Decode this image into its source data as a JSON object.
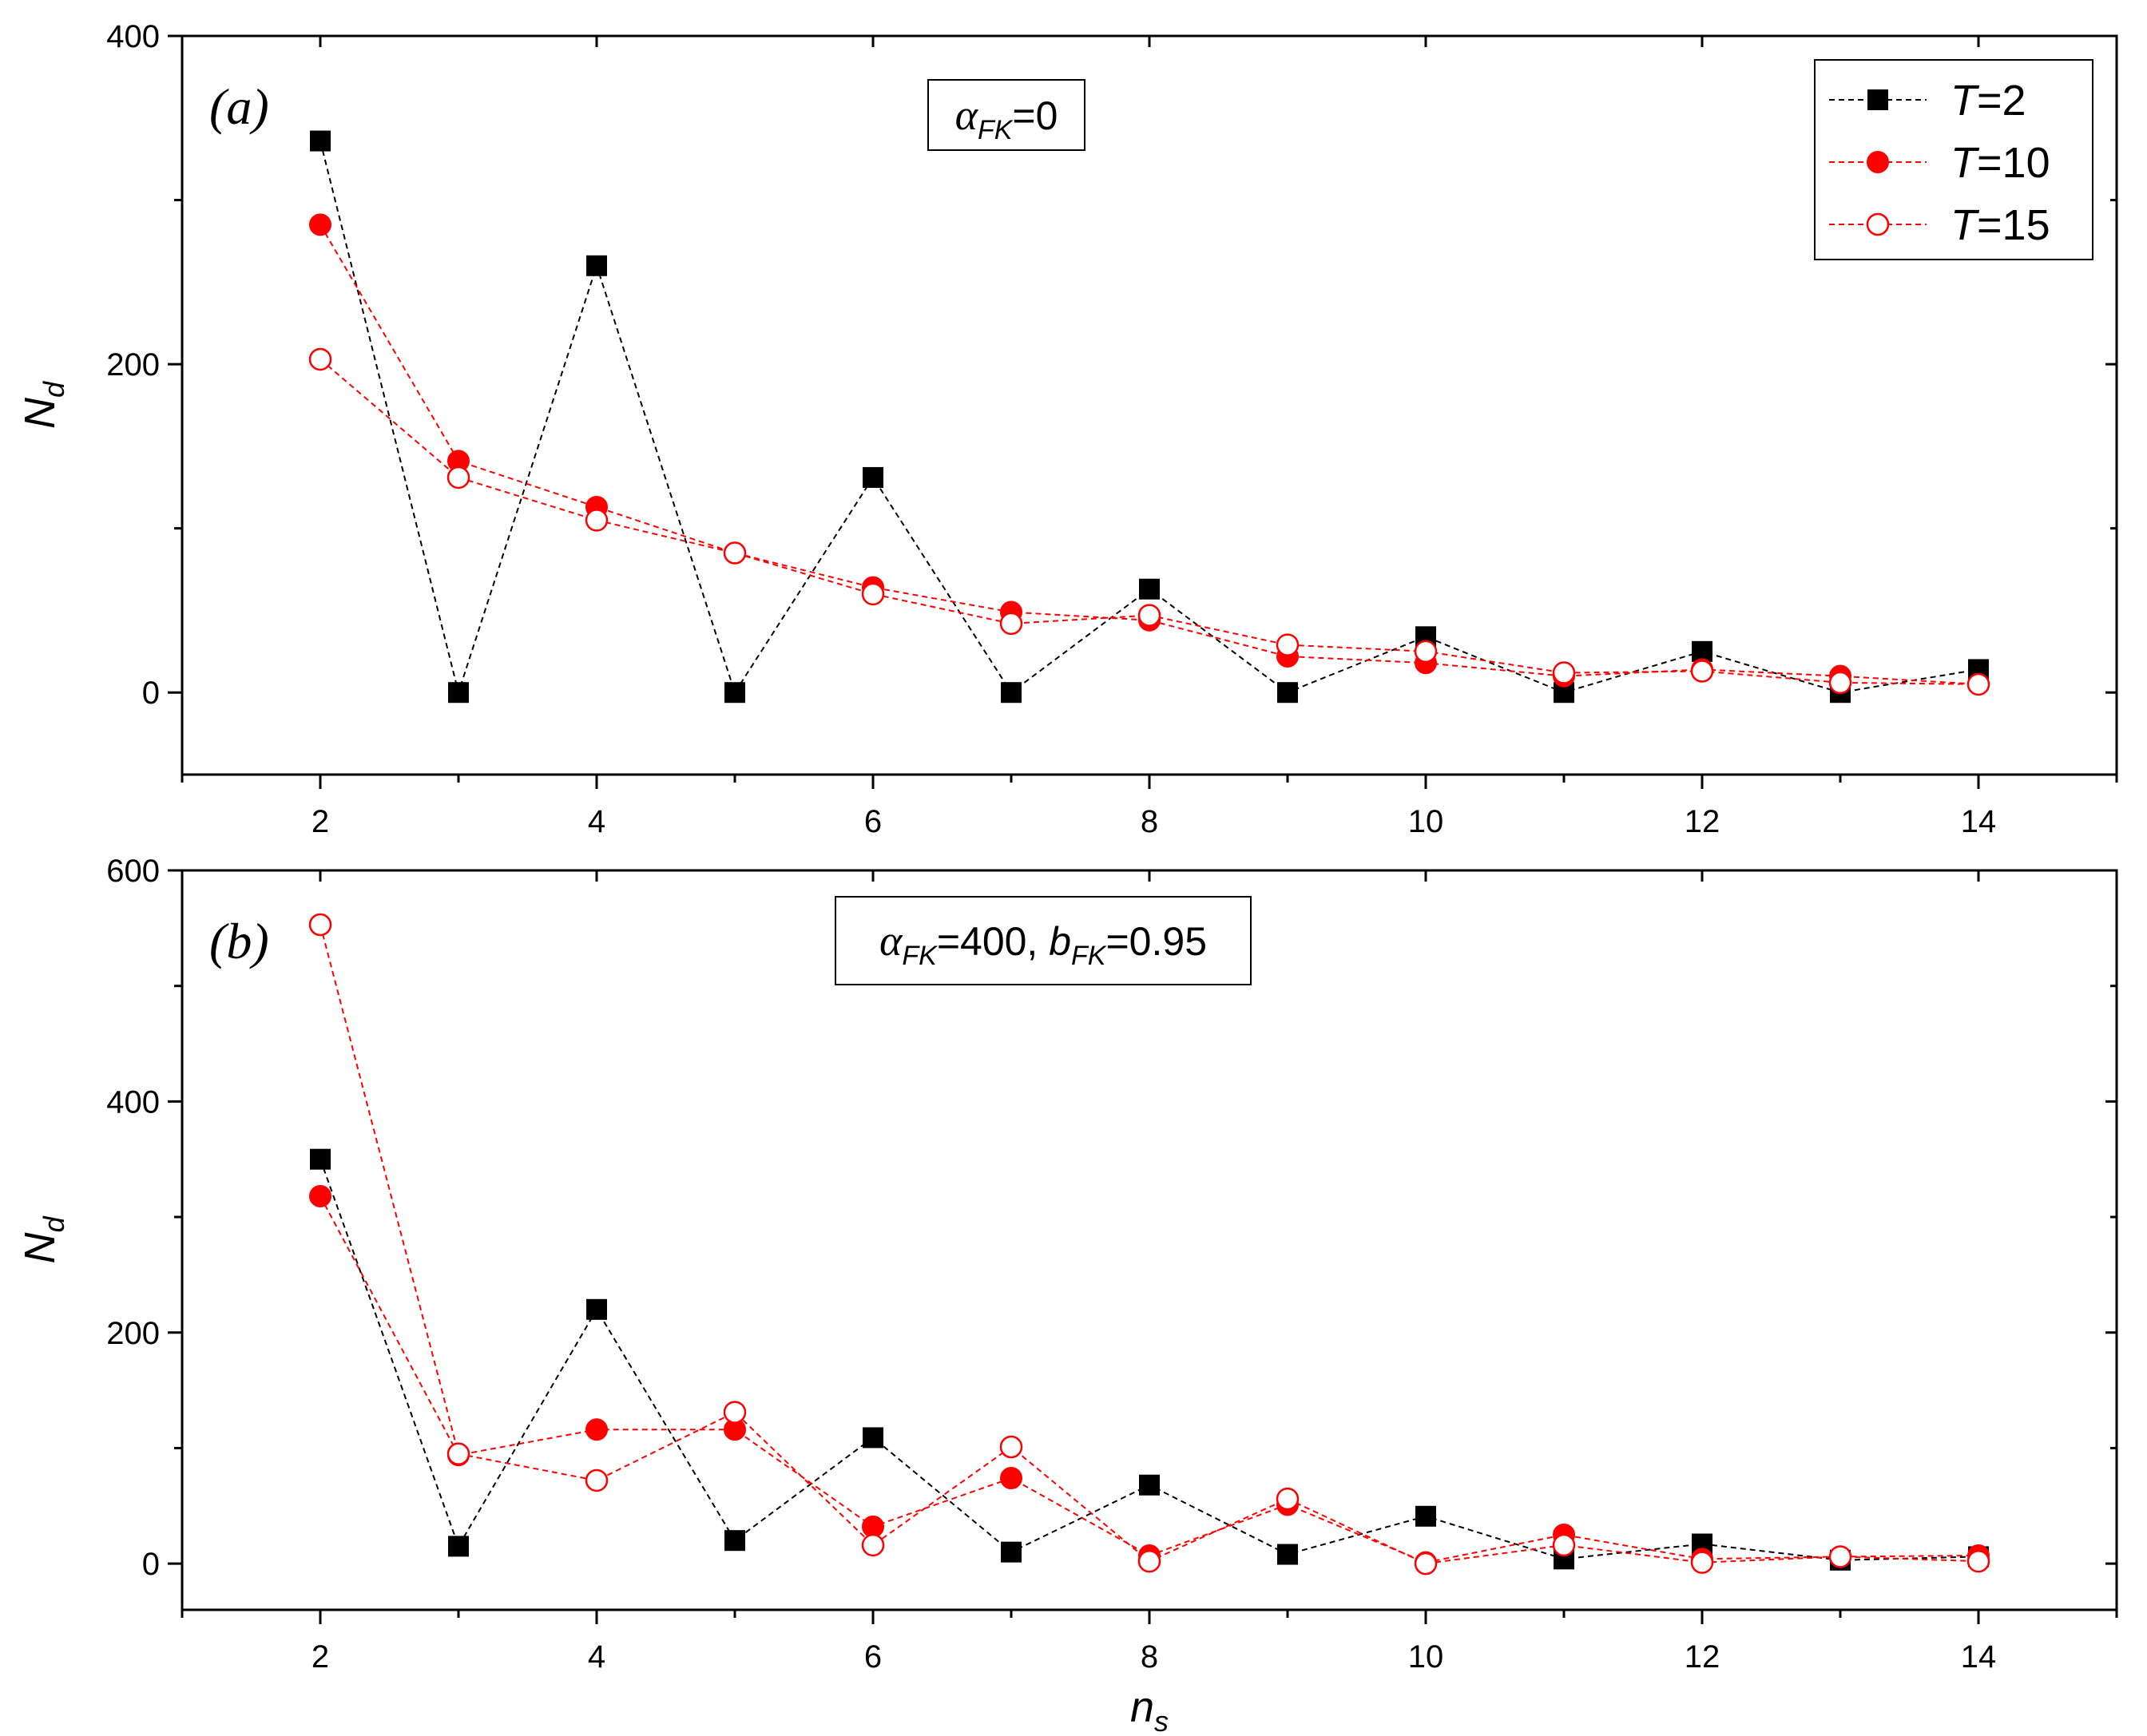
{
  "chart_data": [
    {
      "type": "line",
      "panel": "(a)",
      "annotation": {
        "symbol": "α",
        "subscript": "FK",
        "text": "=0"
      },
      "xlabel": {
        "main": "n",
        "sub": "s"
      },
      "ylabel": {
        "main": "N",
        "sub": "d"
      },
      "xlim": [
        1,
        15
      ],
      "ylim": [
        -50,
        400
      ],
      "xticks": [
        2,
        4,
        6,
        8,
        10,
        12,
        14
      ],
      "yticks": [
        0,
        200,
        400
      ],
      "y_minor_ticks": [
        100,
        300
      ],
      "x": [
        2,
        3,
        4,
        5,
        6,
        7,
        8,
        9,
        10,
        11,
        12,
        13,
        14
      ],
      "series": [
        {
          "name": "T=2",
          "marker": "square-filled",
          "color": "#000000",
          "values": [
            336,
            0,
            260,
            0,
            131,
            0,
            63,
            0,
            34,
            0,
            25,
            0,
            14
          ]
        },
        {
          "name": "T=10",
          "marker": "circle-filled",
          "color": "#ff0000",
          "values": [
            285,
            141,
            113,
            85,
            64,
            49,
            44,
            22,
            18,
            10,
            14,
            10,
            5
          ]
        },
        {
          "name": "T=15",
          "marker": "circle-open",
          "color": "#ff0000",
          "values": [
            203,
            131,
            105,
            85,
            60,
            42,
            47,
            29,
            25,
            12,
            13,
            6,
            5
          ]
        }
      ],
      "legend": {
        "placement": "top-right",
        "entries": [
          {
            "label": "T",
            "value": "=2"
          },
          {
            "label": "T",
            "value": "=10"
          },
          {
            "label": "T",
            "value": "=15"
          }
        ]
      }
    },
    {
      "type": "line",
      "panel": "(b)",
      "annotation": {
        "symbol1": "α",
        "subscript1": "FK",
        "text1": "=400, ",
        "symbol2": "b",
        "subscript2": "FK",
        "text2": "=0.95"
      },
      "xlabel": {
        "main": "n",
        "sub": "s"
      },
      "ylabel": {
        "main": "N",
        "sub": "d"
      },
      "xlim": [
        1,
        15
      ],
      "ylim": [
        -40,
        600
      ],
      "xticks": [
        2,
        4,
        6,
        8,
        10,
        12,
        14
      ],
      "yticks": [
        0,
        200,
        400,
        600
      ],
      "y_minor_ticks": [
        100,
        300,
        500
      ],
      "x": [
        2,
        3,
        4,
        5,
        6,
        7,
        8,
        9,
        10,
        11,
        12,
        13,
        14
      ],
      "series": [
        {
          "name": "T=2",
          "marker": "square-filled",
          "color": "#000000",
          "values": [
            350,
            15,
            220,
            20,
            109,
            10,
            68,
            8,
            41,
            4,
            17,
            3,
            6
          ]
        },
        {
          "name": "T=10",
          "marker": "circle-filled",
          "color": "#ff0000",
          "values": [
            318,
            94,
            116,
            116,
            32,
            74,
            7,
            51,
            1,
            25,
            4,
            6,
            7
          ]
        },
        {
          "name": "T=15",
          "marker": "circle-open",
          "color": "#ff0000",
          "values": [
            553,
            95,
            72,
            131,
            16,
            101,
            2,
            56,
            0,
            16,
            1,
            6,
            2
          ]
        }
      ]
    }
  ]
}
